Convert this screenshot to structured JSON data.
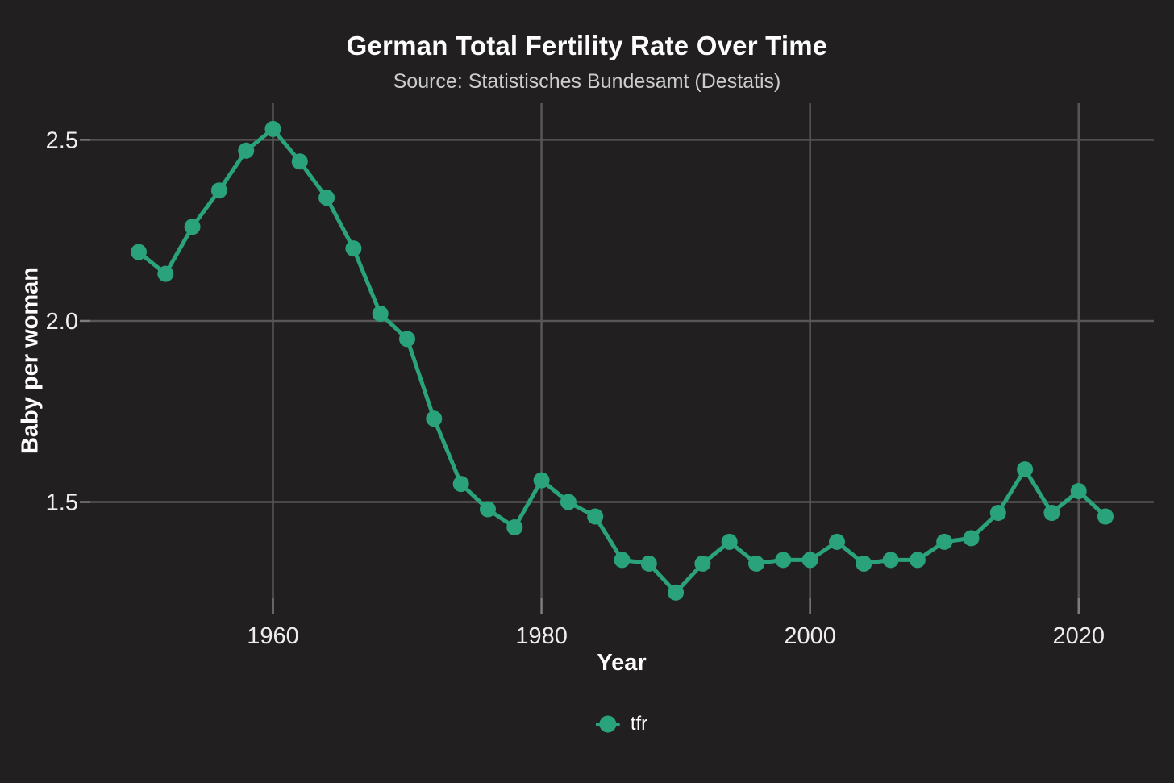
{
  "figure": {
    "title": "German Total Fertility Rate Over Time",
    "subtitle": "Source: Statistisches Bundesamt (Destatis)"
  },
  "chart_data": {
    "type": "line",
    "title": "German Total Fertility Rate Over Time",
    "subtitle": "Source: Statistisches Bundesamt (Destatis)",
    "xlabel": "Year",
    "ylabel": "Baby per woman",
    "x": [
      1950,
      1952,
      1954,
      1956,
      1958,
      1960,
      1962,
      1964,
      1966,
      1968,
      1970,
      1972,
      1974,
      1976,
      1978,
      1980,
      1982,
      1984,
      1986,
      1988,
      1990,
      1992,
      1994,
      1996,
      1998,
      2000,
      2002,
      2004,
      2006,
      2008,
      2010,
      2012,
      2014,
      2016,
      2018,
      2020,
      2022
    ],
    "series": [
      {
        "name": "tfr",
        "color": "#2aa37c",
        "values": [
          2.19,
          2.13,
          2.26,
          2.36,
          2.47,
          2.53,
          2.44,
          2.34,
          2.2,
          2.02,
          1.95,
          1.73,
          1.55,
          1.48,
          1.43,
          1.56,
          1.5,
          1.46,
          1.34,
          1.33,
          1.25,
          1.33,
          1.39,
          1.33,
          1.34,
          1.34,
          1.39,
          1.33,
          1.34,
          1.34,
          1.39,
          1.4,
          1.47,
          1.59,
          1.47,
          1.53,
          1.46
        ]
      }
    ],
    "x_ticks": {
      "values": [
        1960,
        1980,
        2000,
        2020
      ],
      "labels": [
        "1960",
        "1980",
        "2000",
        "2020"
      ]
    },
    "y_ticks": {
      "values": [
        1.5,
        2.0,
        2.5
      ],
      "labels": [
        "1.5",
        "2.0",
        "2.5"
      ]
    },
    "xlim": [
      1946.4,
      2025.6
    ],
    "ylim": [
      1.234,
      2.601
    ],
    "grid": true,
    "marker": "point",
    "legend": {
      "position": "bottom",
      "items": [
        {
          "label": "tfr",
          "color": "#2aa37c"
        }
      ]
    }
  },
  "colors": {
    "background": "#211f1f",
    "grid": "#575757",
    "tick": "#7d7d7d",
    "series": "#2aa37c",
    "title_text": "#fdfdfd",
    "subtitle_text": "#cccccc",
    "tick_label": "#ededed"
  }
}
